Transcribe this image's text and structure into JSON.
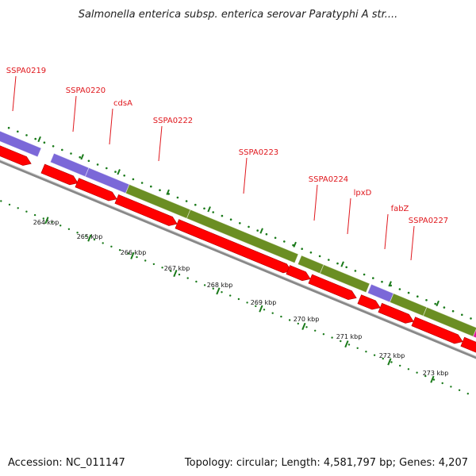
{
  "title": "Salmonella enterica subsp. enterica serovar Paratyphi A str....",
  "footer": {
    "accession": "Accession: NC_011147",
    "summary": "Topology: circular; Length: 4,581,797 bp; Genes: 4,207"
  },
  "gene_labels": [
    "SSPA0219",
    "SSPA0220",
    "cdsA",
    "SSPA0222",
    "SSPA0223",
    "SSPA0224",
    "lpxD",
    "fabZ",
    "SSPA0227"
  ],
  "scale_labels": [
    "264 kbp",
    "265 kbp",
    "266 kbp",
    "267 kbp",
    "268 kbp",
    "269 kbp",
    "270 kbp",
    "271 kbp",
    "272 kbp",
    "273 kbp"
  ],
  "colors": {
    "cds_forward": "#ff0000",
    "blast_purple": "#7b68d8",
    "blast_green": "#6b8e23",
    "blast_magenta": "#e0159a",
    "backbone": "#888888",
    "tick": "#1a7a1a",
    "label": "#e0161c"
  }
}
